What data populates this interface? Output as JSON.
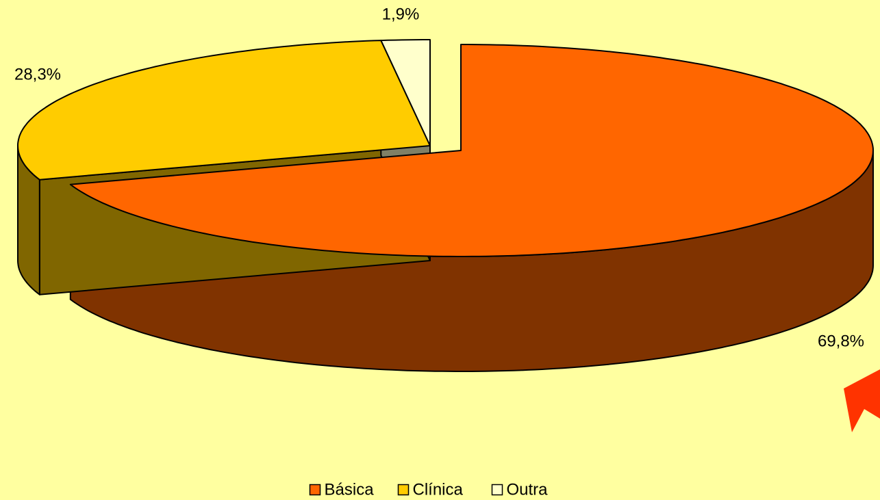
{
  "chart_data": {
    "type": "pie",
    "categories": [
      "Básica",
      "Clínica",
      "Outra"
    ],
    "values": [
      69.8,
      28.3,
      1.9
    ],
    "value_labels": [
      "69,8%",
      "28,3%",
      "1,9%"
    ],
    "colors": [
      "#ff6600",
      "#ffcc00",
      "#ffffcc"
    ],
    "side_colors": [
      "#803300",
      "#806600",
      "#808066"
    ],
    "legend": "bottom"
  }
}
